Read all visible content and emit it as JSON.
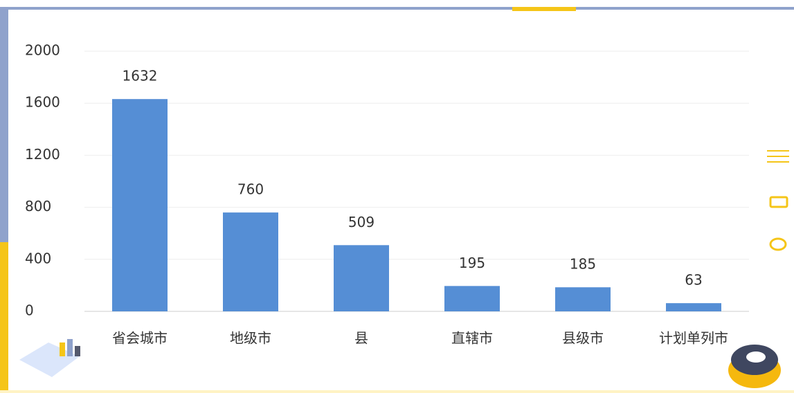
{
  "chart_data": {
    "type": "bar",
    "categories": [
      "省会城市",
      "地级市",
      "县",
      "直辖市",
      "县级市",
      "计划单列市"
    ],
    "values": [
      1632,
      760,
      509,
      195,
      185,
      63
    ],
    "color": "#558ed5",
    "ylim": [
      0,
      2000
    ],
    "yticks": [
      0,
      400,
      800,
      1200,
      1600,
      2000
    ],
    "grid": true
  }
}
